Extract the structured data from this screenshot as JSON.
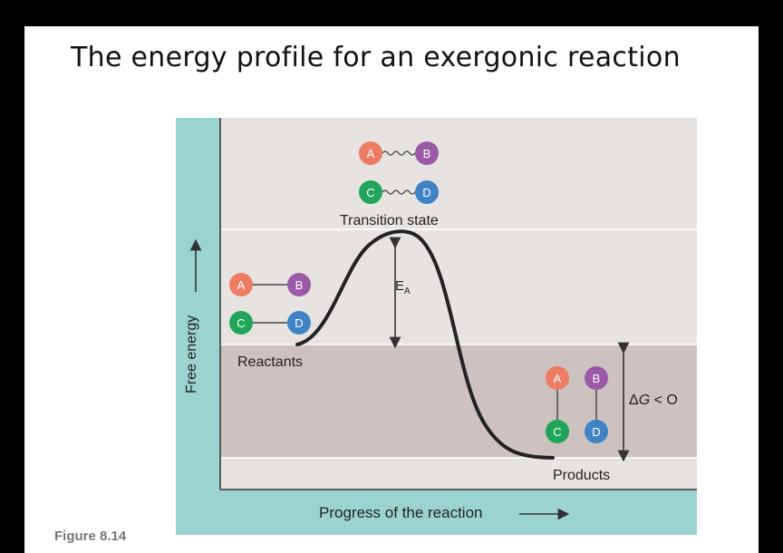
{
  "slide": {
    "title": "The energy profile for an exergonic reaction",
    "figure_label": "Figure 8.14"
  },
  "diagram": {
    "y_axis_label": "Free energy",
    "x_axis_label": "Progress of the reaction",
    "transition_state_label": "Transition state",
    "reactants_label": "Reactants",
    "products_label": "Products",
    "activation_energy": {
      "symbol": "E",
      "subscript": "A"
    },
    "delta_g": {
      "delta": "Δ",
      "symbol": "G",
      "relation": " < O"
    },
    "molecules": {
      "a": "A",
      "b": "B",
      "c": "C",
      "d": "D"
    },
    "colors": {
      "background_teal": "#9bd3d1",
      "panel_light": "#e7e3e1",
      "panel_band": "#ccc2bf",
      "curve": "#222222",
      "molecule_a": "#ee7b63",
      "molecule_b": "#9a5aa6",
      "molecule_c": "#21a55a",
      "molecule_d": "#3f83c4"
    }
  }
}
